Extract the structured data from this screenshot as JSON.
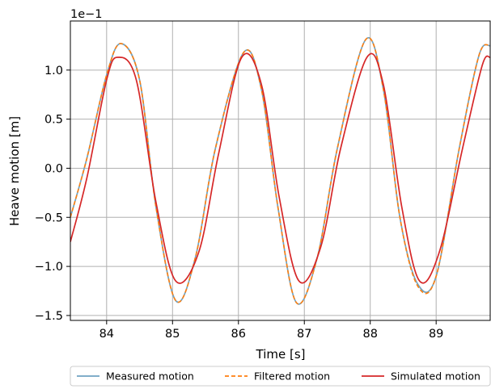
{
  "chart_data": {
    "type": "line",
    "xlabel": "Time [s]",
    "ylabel": "Heave motion [m]",
    "y_offset_text": "1e−1",
    "y_scale_factor": 0.1,
    "xlim": [
      83.45,
      89.82
    ],
    "ylim": [
      -0.155,
      0.15
    ],
    "grid": true,
    "legend_placement": "below-plot",
    "x_ticks": [
      84,
      85,
      86,
      87,
      88,
      89
    ],
    "x_tick_labels": [
      "84",
      "85",
      "86",
      "87",
      "88",
      "89"
    ],
    "y_ticks": [
      -0.15,
      -0.1,
      -0.05,
      0.0,
      0.05,
      0.1
    ],
    "y_tick_labels": [
      "−1.5",
      "−1.0",
      "−0.5",
      "0.0",
      "0.5",
      "1.0"
    ],
    "series": [
      {
        "name": "Measured motion",
        "color": "#6fa3c2",
        "style": "solid",
        "x": [
          83.45,
          83.7,
          84.0,
          84.22,
          84.5,
          84.75,
          85.05,
          85.35,
          85.65,
          86.08,
          86.35,
          86.6,
          86.88,
          87.2,
          87.5,
          87.93,
          88.2,
          88.45,
          88.72,
          89.0,
          89.35,
          89.65,
          89.82
        ],
        "y": [
          -0.05,
          0.01,
          0.095,
          0.127,
          0.09,
          -0.04,
          -0.135,
          -0.09,
          0.02,
          0.118,
          0.08,
          -0.04,
          -0.137,
          -0.09,
          0.02,
          0.131,
          0.08,
          -0.05,
          -0.118,
          -0.11,
          0.02,
          0.115,
          0.125
        ]
      },
      {
        "name": "Filtered motion",
        "color": "#ff7f0e",
        "style": "dashed",
        "x": [
          83.45,
          83.7,
          84.0,
          84.22,
          84.5,
          84.75,
          85.05,
          85.35,
          85.65,
          86.08,
          86.35,
          86.6,
          86.88,
          87.2,
          87.5,
          87.93,
          88.2,
          88.45,
          88.72,
          89.0,
          89.35,
          89.65,
          89.82
        ],
        "y": [
          -0.05,
          0.01,
          0.095,
          0.127,
          0.09,
          -0.04,
          -0.135,
          -0.09,
          0.02,
          0.118,
          0.08,
          -0.04,
          -0.137,
          -0.09,
          0.02,
          0.131,
          0.08,
          -0.05,
          -0.12,
          -0.11,
          0.02,
          0.115,
          0.125
        ]
      },
      {
        "name": "Simulated motion",
        "color": "#d62728",
        "style": "solid",
        "x": [
          83.45,
          83.7,
          84.0,
          84.17,
          84.45,
          84.75,
          85.05,
          85.4,
          85.7,
          86.05,
          86.35,
          86.62,
          86.92,
          87.25,
          87.55,
          87.95,
          88.2,
          88.48,
          88.75,
          89.05,
          89.4,
          89.7,
          89.82
        ],
        "y": [
          -0.075,
          -0.01,
          0.09,
          0.113,
          0.09,
          -0.035,
          -0.115,
          -0.085,
          0.015,
          0.113,
          0.085,
          -0.03,
          -0.115,
          -0.08,
          0.02,
          0.113,
          0.085,
          -0.04,
          -0.115,
          -0.085,
          0.02,
          0.105,
          0.113
        ]
      }
    ]
  }
}
